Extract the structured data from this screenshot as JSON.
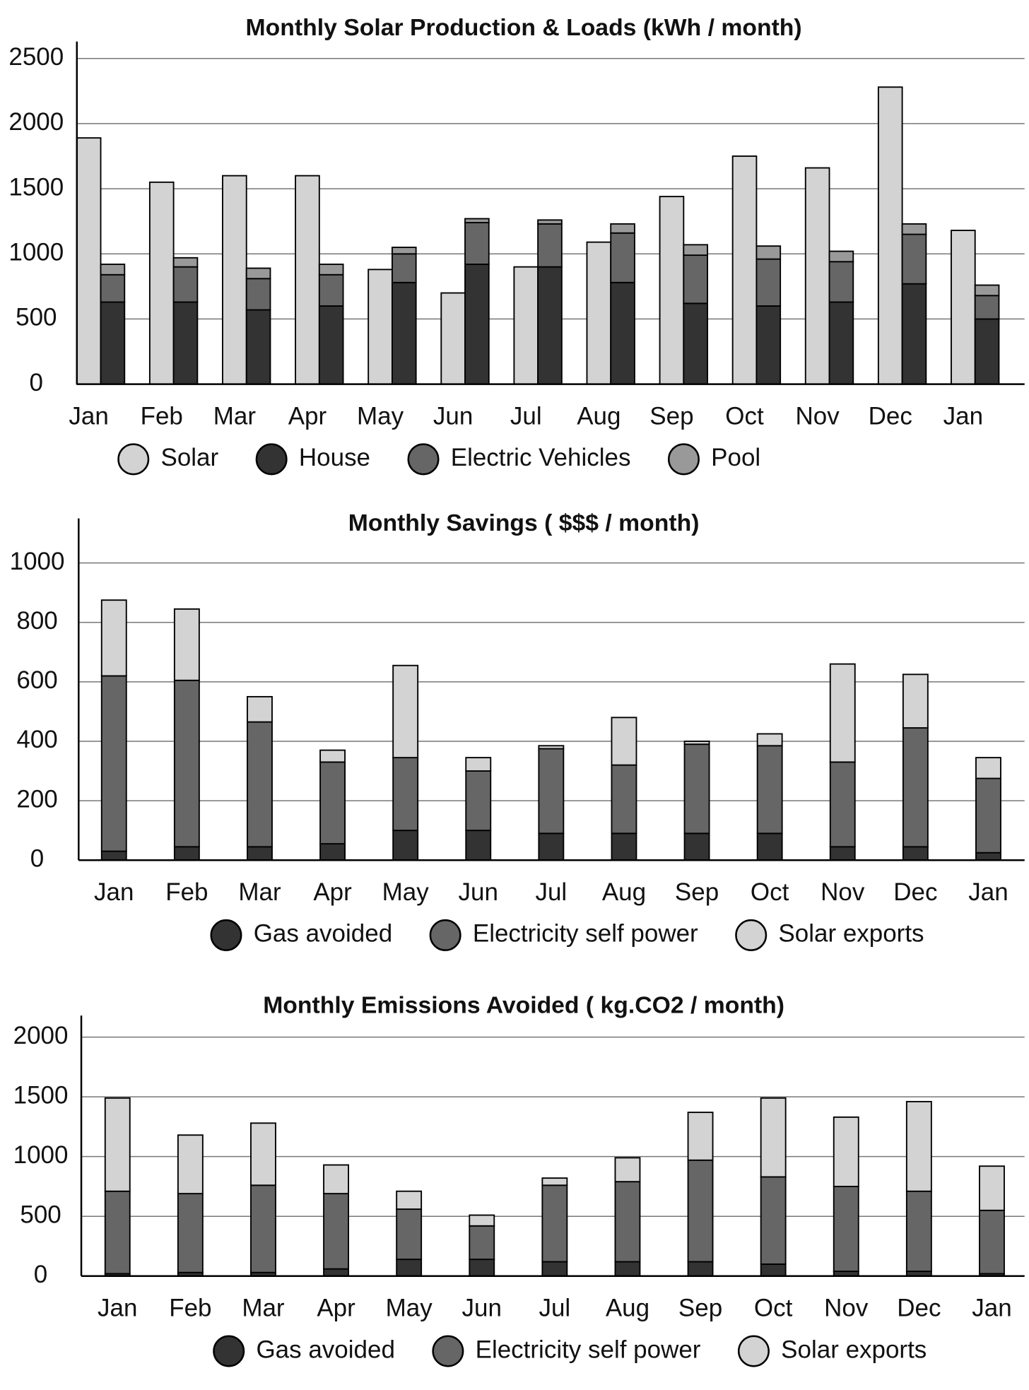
{
  "chart_data": [
    {
      "type": "grouped-stacked-bar",
      "title": "Monthly Solar Production & Loads (kWh / month)",
      "categories": [
        "Jan",
        "Feb",
        "Mar",
        "Apr",
        "May",
        "Jun",
        "Jul",
        "Aug",
        "Sep",
        "Oct",
        "Nov",
        "Dec",
        "Jan"
      ],
      "series": [
        {
          "name": "Solar",
          "color": "#d3d3d3",
          "group": 0,
          "values": [
            1890,
            1550,
            1600,
            1600,
            880,
            700,
            900,
            1090,
            1440,
            1750,
            1660,
            2280,
            1180
          ]
        },
        {
          "name": "House",
          "color": "#333333",
          "group": 1,
          "values": [
            630,
            630,
            570,
            600,
            780,
            920,
            900,
            780,
            620,
            600,
            630,
            770,
            500
          ]
        },
        {
          "name": "Electric Vehicles",
          "color": "#666666",
          "group": 1,
          "values": [
            210,
            270,
            240,
            240,
            220,
            320,
            330,
            380,
            370,
            360,
            310,
            380,
            180
          ]
        },
        {
          "name": "Pool",
          "color": "#999999",
          "group": 1,
          "values": [
            80,
            70,
            80,
            80,
            50,
            30,
            30,
            70,
            80,
            100,
            80,
            80,
            80
          ]
        }
      ],
      "ylim": [
        0,
        2630
      ],
      "yticks": [
        0,
        500,
        1000,
        1500,
        2000,
        2500
      ],
      "grid": true,
      "legend": "bottom"
    },
    {
      "type": "stacked-bar",
      "title": "Monthly Savings ( $$$ / month)",
      "categories": [
        "Jan",
        "Feb",
        "Mar",
        "Apr",
        "May",
        "Jun",
        "Jul",
        "Aug",
        "Sep",
        "Oct",
        "Nov",
        "Dec",
        "Jan"
      ],
      "series": [
        {
          "name": "Gas avoided",
          "color": "#333333",
          "values": [
            30,
            45,
            45,
            55,
            100,
            100,
            90,
            90,
            90,
            90,
            45,
            45,
            25
          ]
        },
        {
          "name": "Electricity self power",
          "color": "#666666",
          "values": [
            590,
            560,
            420,
            275,
            245,
            200,
            285,
            230,
            300,
            295,
            285,
            400,
            250
          ]
        },
        {
          "name": "Solar exports",
          "color": "#d3d3d3",
          "values": [
            255,
            240,
            85,
            40,
            310,
            45,
            10,
            160,
            10,
            40,
            330,
            180,
            70
          ]
        }
      ],
      "ylim": [
        0,
        1150
      ],
      "yticks": [
        0,
        200,
        400,
        600,
        800,
        1000
      ],
      "grid": true,
      "legend": "bottom"
    },
    {
      "type": "stacked-bar",
      "title": "Monthly Emissions Avoided ( kg.CO2 / month)",
      "categories": [
        "Jan",
        "Feb",
        "Mar",
        "Apr",
        "May",
        "Jun",
        "Jul",
        "Aug",
        "Sep",
        "Oct",
        "Nov",
        "Dec",
        "Jan"
      ],
      "series": [
        {
          "name": "Gas avoided",
          "color": "#333333",
          "values": [
            20,
            30,
            30,
            60,
            140,
            140,
            120,
            120,
            120,
            100,
            40,
            40,
            20
          ]
        },
        {
          "name": "Electricity self power",
          "color": "#666666",
          "values": [
            690,
            660,
            730,
            630,
            420,
            280,
            640,
            670,
            850,
            730,
            710,
            670,
            530
          ]
        },
        {
          "name": "Solar exports",
          "color": "#d3d3d3",
          "values": [
            780,
            490,
            520,
            240,
            150,
            90,
            60,
            200,
            400,
            660,
            580,
            750,
            370
          ]
        }
      ],
      "ylim": [
        0,
        2180
      ],
      "yticks": [
        0,
        500,
        1000,
        1500,
        2000
      ],
      "grid": true,
      "legend": "bottom"
    }
  ]
}
